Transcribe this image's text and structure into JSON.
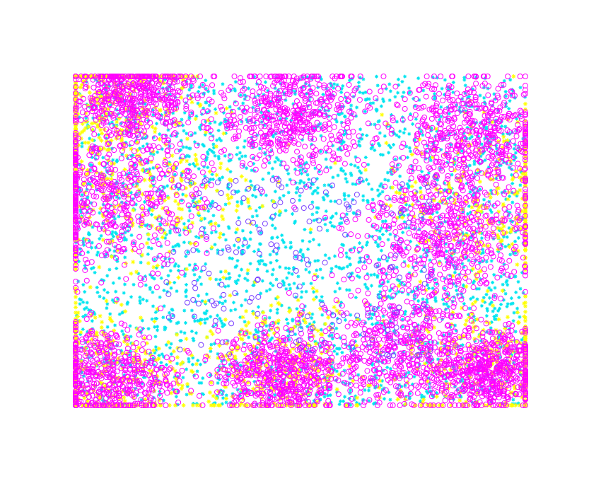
{
  "chart_data": {
    "type": "scatter",
    "title": "",
    "xlabel": "",
    "ylabel": "",
    "xlim": [
      0,
      1
    ],
    "ylim": [
      0,
      1
    ],
    "axes_visible": false,
    "grid": false,
    "legend": "none",
    "series": [
      {
        "role": "background field",
        "marker": "plus",
        "color": "#00e5f0",
        "density": "dense",
        "extent": {
          "x": [
            0,
            1
          ],
          "y": [
            0,
            1
          ]
        }
      },
      {
        "role": "boundary band",
        "marker": "plus",
        "color": "#ffff00",
        "clusters": [
          {
            "x": 0.05,
            "y": 0.93,
            "spread": 0.1
          },
          {
            "x": 0.14,
            "y": 0.65,
            "spread": 0.14
          },
          {
            "x": 0.05,
            "y": 0.1,
            "spread": 0.1
          },
          {
            "x": 0.93,
            "y": 0.63,
            "spread": 0.12
          },
          {
            "x": 0.94,
            "y": 0.12,
            "spread": 0.11
          },
          {
            "x": 0.45,
            "y": 0.12,
            "spread": 0.1
          }
        ]
      },
      {
        "role": "cluster points",
        "marker": "circle",
        "color": "#ff00ff",
        "clusters": [
          {
            "x": 0.13,
            "y": 0.94,
            "spread": 0.09
          },
          {
            "x": 0.07,
            "y": 0.63,
            "spread": 0.14
          },
          {
            "x": 0.48,
            "y": 0.88,
            "spread": 0.11
          },
          {
            "x": 0.88,
            "y": 0.82,
            "spread": 0.12
          },
          {
            "x": 0.82,
            "y": 0.52,
            "spread": 0.13
          },
          {
            "x": 0.72,
            "y": 0.18,
            "spread": 0.12
          },
          {
            "x": 0.92,
            "y": 0.1,
            "spread": 0.08
          },
          {
            "x": 0.07,
            "y": 0.09,
            "spread": 0.1
          },
          {
            "x": 0.45,
            "y": 0.1,
            "spread": 0.09
          }
        ]
      },
      {
        "role": "scattered markers",
        "marker": "circle",
        "color": "#7a40ff",
        "density": "sparse"
      }
    ]
  }
}
